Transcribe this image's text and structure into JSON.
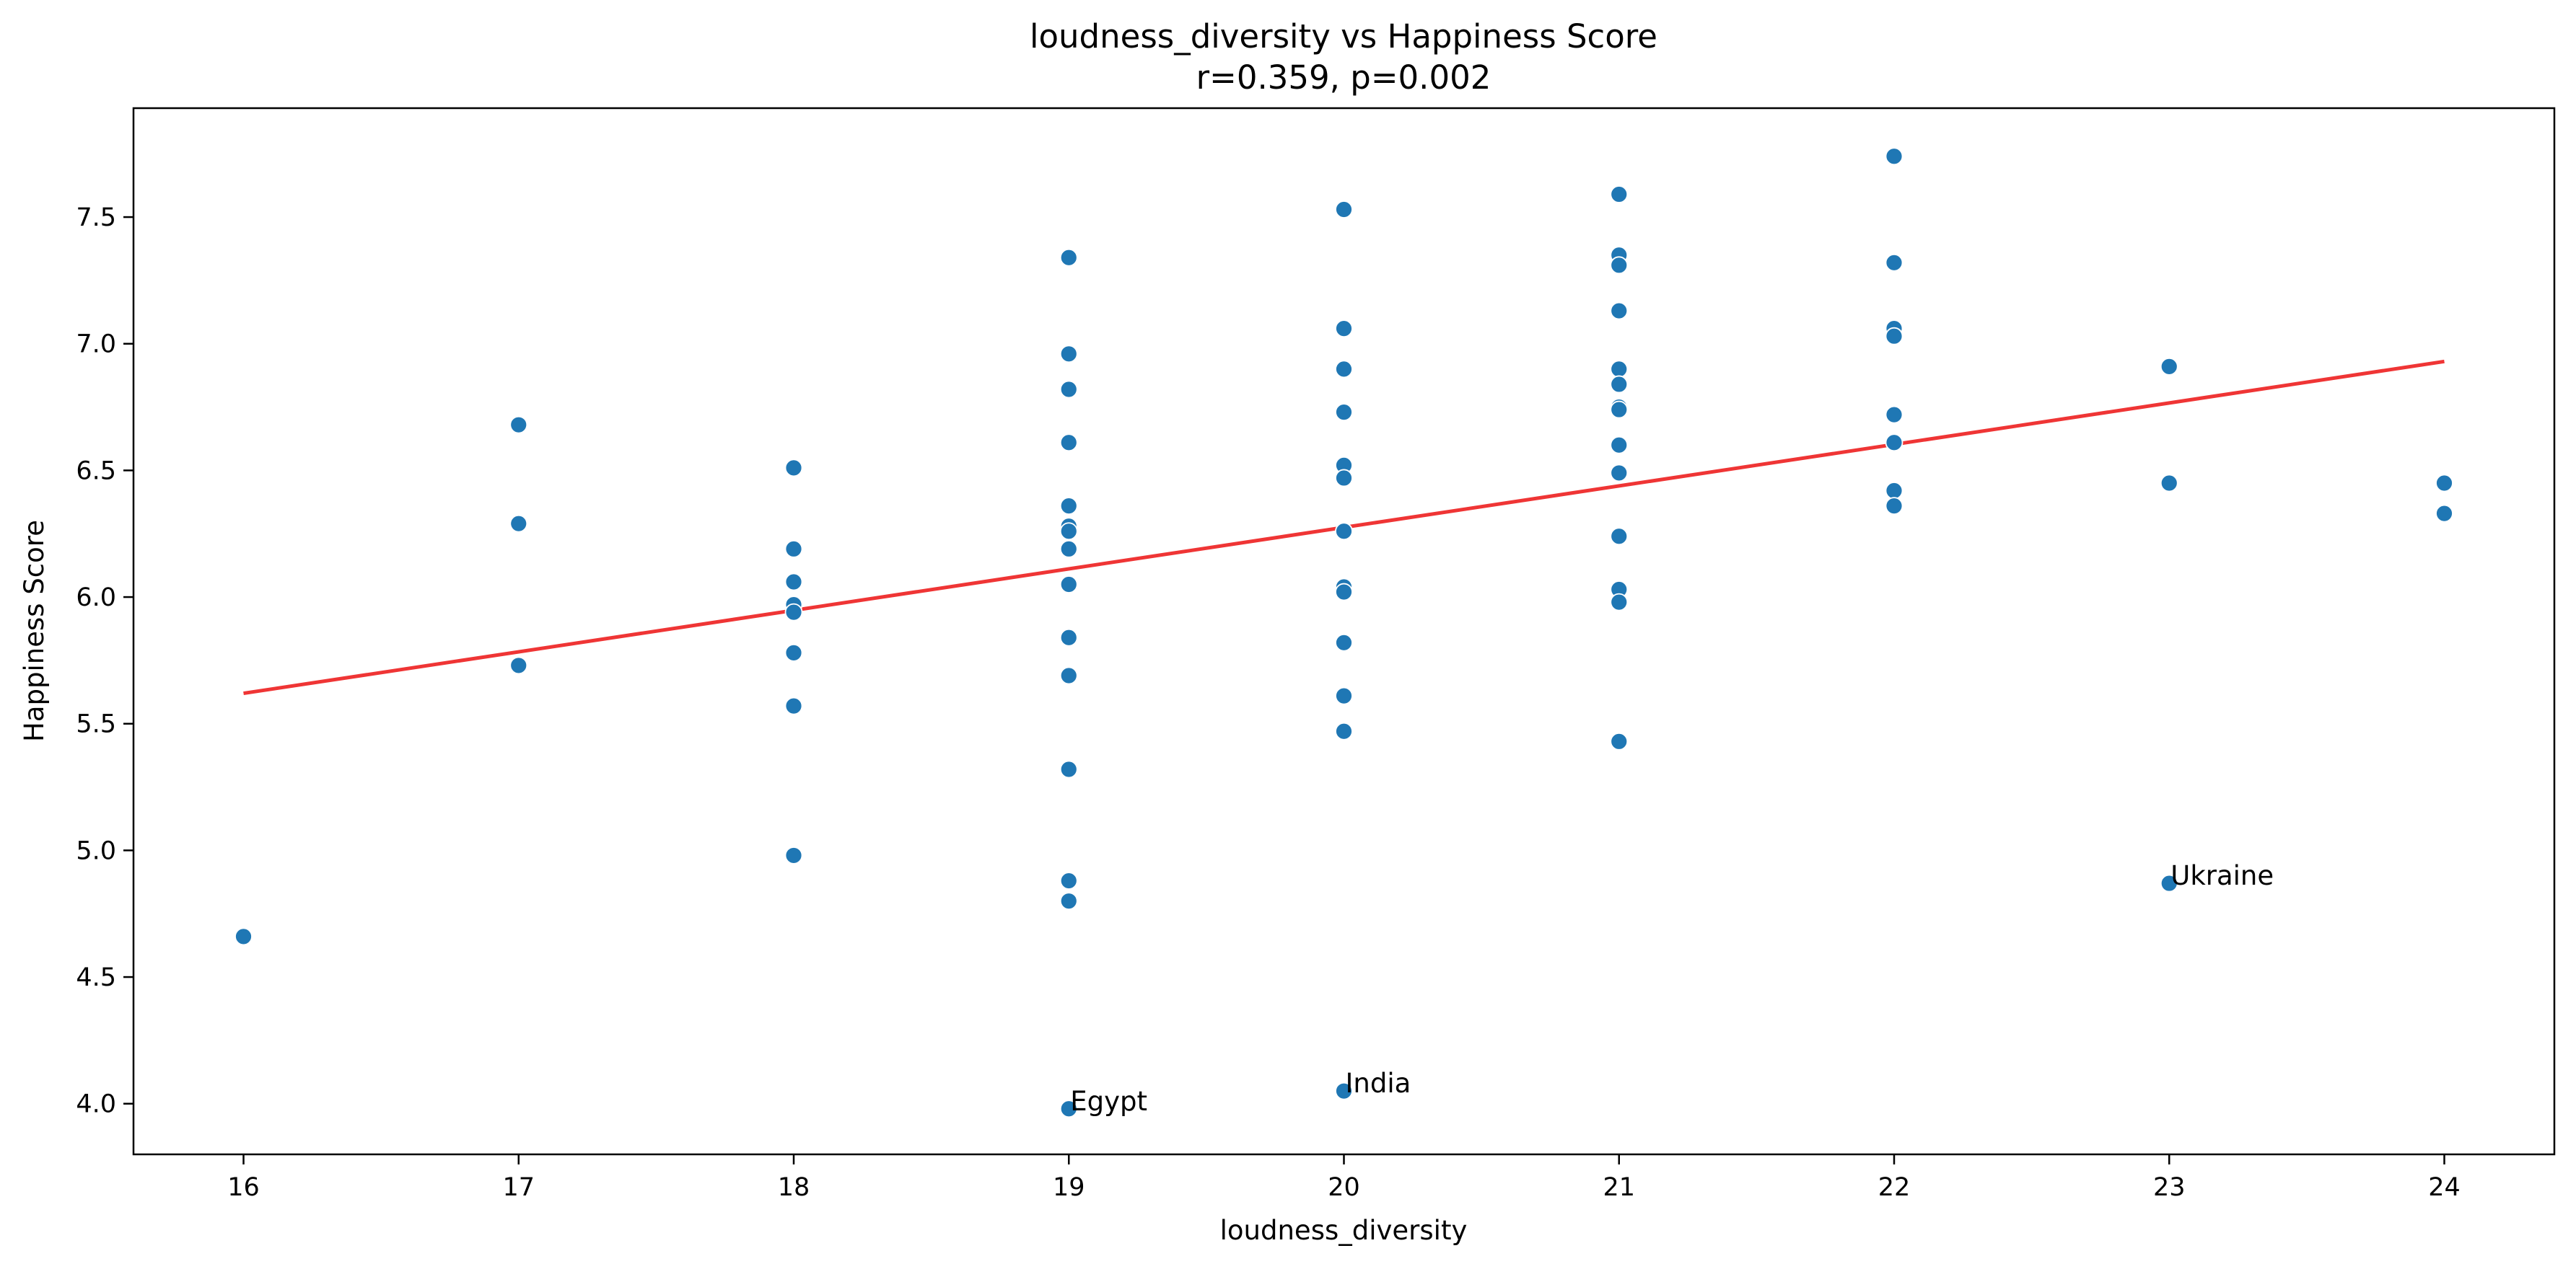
{
  "chart_data": {
    "type": "scatter",
    "title": "loudness_diversity vs Happiness Score",
    "subtitle": "r=0.359, p=0.002",
    "xlabel": "loudness_diversity",
    "ylabel": "Happiness Score",
    "xlim": [
      15.6,
      24.4
    ],
    "ylim": [
      3.8,
      7.93
    ],
    "xticks": [
      16,
      17,
      18,
      19,
      20,
      21,
      22,
      23,
      24
    ],
    "yticks": [
      4.0,
      4.5,
      5.0,
      5.5,
      6.0,
      6.5,
      7.0,
      7.5
    ],
    "ytick_labels": [
      "4.0",
      "4.5",
      "5.0",
      "5.5",
      "6.0",
      "6.5",
      "7.0",
      "7.5"
    ],
    "grid": false,
    "marker_color": "#1f77b4",
    "marker_edge_color": "#ffffff",
    "points": [
      {
        "x": 16,
        "y": 4.66
      },
      {
        "x": 17,
        "y": 6.68
      },
      {
        "x": 17,
        "y": 6.29
      },
      {
        "x": 17,
        "y": 5.73
      },
      {
        "x": 18,
        "y": 6.51
      },
      {
        "x": 18,
        "y": 6.19
      },
      {
        "x": 18,
        "y": 6.06
      },
      {
        "x": 18,
        "y": 5.97
      },
      {
        "x": 18,
        "y": 5.94
      },
      {
        "x": 18,
        "y": 5.78
      },
      {
        "x": 18,
        "y": 5.57
      },
      {
        "x": 18,
        "y": 4.98
      },
      {
        "x": 19,
        "y": 7.34
      },
      {
        "x": 19,
        "y": 6.96
      },
      {
        "x": 19,
        "y": 6.82
      },
      {
        "x": 19,
        "y": 6.61
      },
      {
        "x": 19,
        "y": 6.36
      },
      {
        "x": 19,
        "y": 6.28
      },
      {
        "x": 19,
        "y": 6.26
      },
      {
        "x": 19,
        "y": 6.19
      },
      {
        "x": 19,
        "y": 6.05
      },
      {
        "x": 19,
        "y": 5.84
      },
      {
        "x": 19,
        "y": 5.69
      },
      {
        "x": 19,
        "y": 5.32
      },
      {
        "x": 19,
        "y": 4.88
      },
      {
        "x": 19,
        "y": 4.8
      },
      {
        "x": 19,
        "y": 3.98,
        "label": "Egypt"
      },
      {
        "x": 20,
        "y": 7.53
      },
      {
        "x": 20,
        "y": 7.06
      },
      {
        "x": 20,
        "y": 6.9
      },
      {
        "x": 20,
        "y": 6.73
      },
      {
        "x": 20,
        "y": 6.52
      },
      {
        "x": 20,
        "y": 6.47
      },
      {
        "x": 20,
        "y": 6.26
      },
      {
        "x": 20,
        "y": 6.04
      },
      {
        "x": 20,
        "y": 6.02
      },
      {
        "x": 20,
        "y": 5.82
      },
      {
        "x": 20,
        "y": 5.61
      },
      {
        "x": 20,
        "y": 5.47
      },
      {
        "x": 20,
        "y": 4.05,
        "label": "India"
      },
      {
        "x": 21,
        "y": 7.59
      },
      {
        "x": 21,
        "y": 7.35
      },
      {
        "x": 21,
        "y": 7.31
      },
      {
        "x": 21,
        "y": 7.13
      },
      {
        "x": 21,
        "y": 6.9
      },
      {
        "x": 21,
        "y": 6.84
      },
      {
        "x": 21,
        "y": 6.75
      },
      {
        "x": 21,
        "y": 6.74
      },
      {
        "x": 21,
        "y": 6.6
      },
      {
        "x": 21,
        "y": 6.49
      },
      {
        "x": 21,
        "y": 6.24
      },
      {
        "x": 21,
        "y": 6.03
      },
      {
        "x": 21,
        "y": 5.98
      },
      {
        "x": 21,
        "y": 5.43
      },
      {
        "x": 22,
        "y": 7.74
      },
      {
        "x": 22,
        "y": 7.32
      },
      {
        "x": 22,
        "y": 7.06
      },
      {
        "x": 22,
        "y": 7.03
      },
      {
        "x": 22,
        "y": 6.72
      },
      {
        "x": 22,
        "y": 6.61
      },
      {
        "x": 22,
        "y": 6.42
      },
      {
        "x": 22,
        "y": 6.36
      },
      {
        "x": 23,
        "y": 6.91
      },
      {
        "x": 23,
        "y": 6.45
      },
      {
        "x": 23,
        "y": 4.87,
        "label": "Ukraine"
      },
      {
        "x": 24,
        "y": 6.45
      },
      {
        "x": 24,
        "y": 6.33
      }
    ],
    "trend_line": {
      "color": "#ee2a2a",
      "x": [
        16,
        24
      ],
      "y": [
        5.62,
        6.93
      ]
    }
  }
}
